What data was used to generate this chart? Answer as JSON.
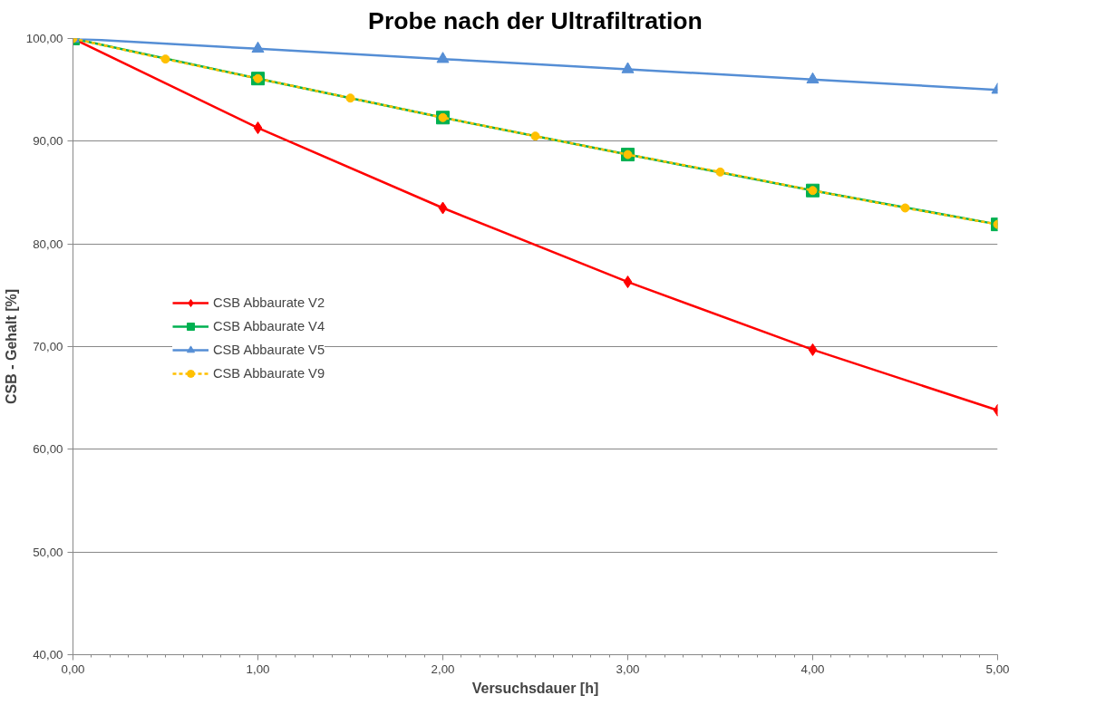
{
  "chart_data": {
    "type": "line",
    "title": "Probe nach der Ultrafiltration",
    "xlabel": "Versuchsdauer [h]",
    "ylabel": "CSB - Gehalt [%]",
    "xlim": [
      0,
      5
    ],
    "ylim": [
      40,
      100
    ],
    "xticks": [
      {
        "value": 0,
        "label": "0,00"
      },
      {
        "value": 1,
        "label": "1,00"
      },
      {
        "value": 2,
        "label": "2,00"
      },
      {
        "value": 3,
        "label": "3,00"
      },
      {
        "value": 4,
        "label": "4,00"
      },
      {
        "value": 5,
        "label": "5,00"
      }
    ],
    "yticks": [
      {
        "value": 40,
        "label": "40,00"
      },
      {
        "value": 50,
        "label": "50,00"
      },
      {
        "value": 60,
        "label": "60,00"
      },
      {
        "value": 70,
        "label": "70,00"
      },
      {
        "value": 80,
        "label": "80,00"
      },
      {
        "value": 90,
        "label": "90,00"
      },
      {
        "value": 100,
        "label": "100,00"
      }
    ],
    "grid": "y",
    "legend": "left",
    "series": [
      {
        "name": "CSB Abbaurate V2",
        "color": "#ff0000",
        "marker": "diamond",
        "line_style": "solid",
        "x": [
          0,
          1,
          2,
          3,
          4,
          5
        ],
        "values": [
          100,
          91.3,
          83.5,
          76.3,
          69.7,
          63.8
        ]
      },
      {
        "name": "CSB Abbaurate V4",
        "color": "#00b050",
        "marker": "square",
        "line_style": "solid",
        "x": [
          0,
          1,
          2,
          3,
          4,
          5
        ],
        "values": [
          100,
          96.1,
          92.3,
          88.7,
          85.2,
          81.9
        ]
      },
      {
        "name": "CSB Abbaurate V5",
        "color": "#558ed5",
        "marker": "triangle",
        "line_style": "solid",
        "x": [
          0,
          1,
          2,
          3,
          4,
          5
        ],
        "values": [
          100,
          99,
          98,
          97,
          96,
          95
        ]
      },
      {
        "name": "CSB Abbaurate V9",
        "color": "#ffc000",
        "marker": "circle",
        "line_style": "dashed",
        "x": [
          0,
          0.5,
          1,
          1.5,
          2,
          2.5,
          3,
          3.5,
          4,
          4.5,
          5
        ],
        "values": [
          100,
          98,
          96.1,
          94.2,
          92.3,
          90.5,
          88.7,
          87,
          85.2,
          83.5,
          81.9
        ]
      }
    ]
  }
}
